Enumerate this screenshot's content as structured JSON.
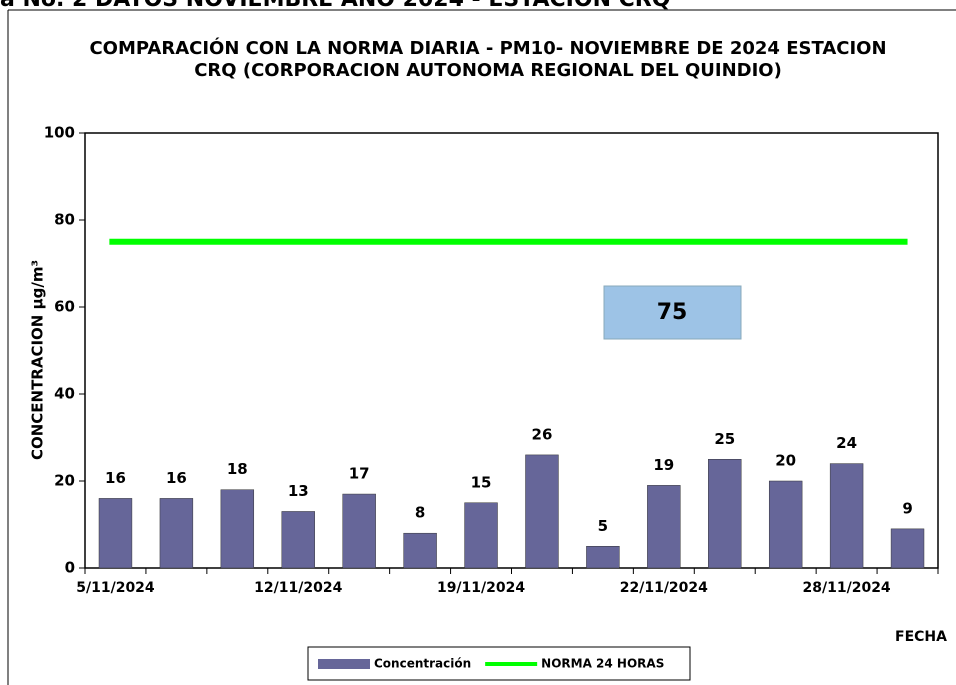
{
  "page_header": "a No. 2 DATOS NOVIEMBRE AÑO 2024 - ESTACION CRQ",
  "chart_data": {
    "type": "bar",
    "title": "COMPARACIÓN CON LA NORMA DIARIA - PM10- NOVIEMBRE DE 2024 ESTACION CRQ (CORPORACION AUTONOMA REGIONAL DEL QUINDIO)",
    "y_label": "CONCENTRACION µg/m³",
    "x_label": "FECHA",
    "categories": [
      "5/11/2024",
      null,
      null,
      "12/11/2024",
      null,
      null,
      "19/11/2024",
      null,
      null,
      "22/11/2024",
      null,
      null,
      "28/11/2024",
      null
    ],
    "series": [
      {
        "name": "Concentración",
        "type": "bar",
        "color": "#666699",
        "values": [
          16,
          16,
          18,
          13,
          17,
          8,
          15,
          26,
          5,
          19,
          25,
          20,
          24,
          9
        ]
      },
      {
        "name": "NORMA 24 HORAS",
        "type": "line",
        "color": "#00ff00",
        "values": [
          75,
          75,
          75,
          75,
          75,
          75,
          75,
          75,
          75,
          75,
          75,
          75,
          75,
          75
        ]
      }
    ],
    "ylim": [
      0,
      100
    ],
    "yticks": [
      0,
      20,
      40,
      60,
      80,
      100
    ],
    "legend": "bottom"
  }
}
